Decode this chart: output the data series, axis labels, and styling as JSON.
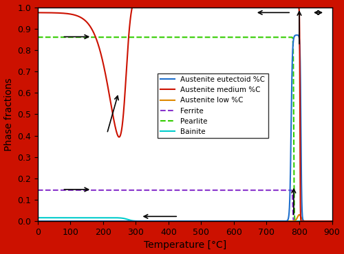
{
  "xlabel": "Temperature [°C]",
  "ylabel": "Phase fractions",
  "xlim": [
    0,
    900
  ],
  "ylim": [
    0,
    1.0
  ],
  "colors": {
    "austenite_eutectoid": "#1e6fcc",
    "austenite_medium": "#cc1100",
    "austenite_low": "#dd8800",
    "ferrite": "#8833cc",
    "pearlite": "#33cc00",
    "bainite": "#00cccc"
  },
  "ferrite_level": 0.145,
  "pearlite_level": 0.86,
  "background_color": "#ffffff",
  "border_color": "#cc1100",
  "fig_border_color": "#cc1100"
}
